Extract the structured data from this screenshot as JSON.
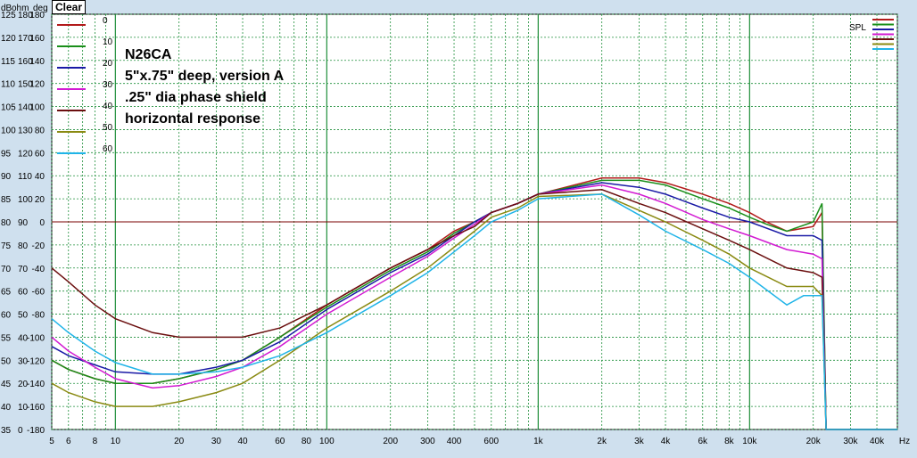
{
  "toolbar": {
    "clear_label": "Clear"
  },
  "header_labels": {
    "db": "dB",
    "ohm": "ohm",
    "deg": "deg"
  },
  "annotation_lines": [
    "N26CA",
    "5\"x.75\" deep, version A",
    ".25\" dia phase shield",
    "horizontal response"
  ],
  "spl_label": "SPL",
  "colors": {
    "s0": "#b21a1a",
    "s10": "#1a8f1a",
    "s20": "#1a1aa6",
    "s30": "#d21ad2",
    "s40": "#6b0f0f",
    "s50": "#8a8a12",
    "s60": "#20b4e8",
    "grid": "#1f8f3a",
    "background": "#ffffff",
    "ref_line": "#7a0000"
  },
  "chart_data": {
    "type": "line",
    "xscale": "log",
    "xlim": [
      5,
      50000
    ],
    "ylim_db": [
      35,
      125
    ],
    "x_tick_labels": [
      "5",
      "6",
      "8",
      "10",
      "20",
      "30",
      "40",
      "60",
      "80",
      "100",
      "200",
      "300",
      "400",
      "600",
      "1k",
      "2k",
      "3k",
      "4k",
      "6k",
      "8k",
      "10k",
      "20k",
      "30k",
      "40k",
      "Hz"
    ],
    "y_tick_rows": [
      {
        "db": "125",
        "ohm": "180",
        "deg": "180"
      },
      {
        "db": "120",
        "ohm": "170",
        "deg": "160"
      },
      {
        "db": "115",
        "ohm": "160",
        "deg": "140"
      },
      {
        "db": "110",
        "ohm": "150",
        "deg": "120"
      },
      {
        "db": "105",
        "ohm": "140",
        "deg": "100"
      },
      {
        "db": "100",
        "ohm": "130",
        "deg": "80"
      },
      {
        "db": "95",
        "ohm": "120",
        "deg": "60"
      },
      {
        "db": "90",
        "ohm": "110",
        "deg": "40"
      },
      {
        "db": "85",
        "ohm": "100",
        "deg": "20"
      },
      {
        "db": "80",
        "ohm": "90",
        "deg": "0"
      },
      {
        "db": "75",
        "ohm": "80",
        "deg": "-20"
      },
      {
        "db": "70",
        "ohm": "70",
        "deg": "-40"
      },
      {
        "db": "65",
        "ohm": "60",
        "deg": "-60"
      },
      {
        "db": "60",
        "ohm": "50",
        "deg": "-80"
      },
      {
        "db": "55",
        "ohm": "40",
        "deg": "-100"
      },
      {
        "db": "50",
        "ohm": "30",
        "deg": "-120"
      },
      {
        "db": "45",
        "ohm": "20",
        "deg": "-140"
      },
      {
        "db": "40",
        "ohm": "10",
        "deg": "-160"
      },
      {
        "db": "35",
        "ohm": "0",
        "deg": "-180"
      }
    ],
    "reference_line_db": 80,
    "series": [
      {
        "name": "0",
        "color": "#b21a1a",
        "points": [
          [
            5,
            50
          ],
          [
            6,
            48
          ],
          [
            8,
            46
          ],
          [
            10,
            45
          ],
          [
            15,
            45
          ],
          [
            20,
            46
          ],
          [
            30,
            48
          ],
          [
            40,
            50
          ],
          [
            60,
            55
          ],
          [
            100,
            62
          ],
          [
            200,
            70
          ],
          [
            300,
            74
          ],
          [
            400,
            78
          ],
          [
            500,
            80
          ],
          [
            600,
            82
          ],
          [
            800,
            84
          ],
          [
            1000,
            86
          ],
          [
            2000,
            89.5
          ],
          [
            3000,
            89.5
          ],
          [
            4000,
            88.5
          ],
          [
            6000,
            86
          ],
          [
            8000,
            84
          ],
          [
            10000,
            82
          ],
          [
            12000,
            80
          ],
          [
            15000,
            78
          ],
          [
            20000,
            79
          ],
          [
            22000,
            82
          ],
          [
            23000,
            35
          ],
          [
            50000,
            35
          ]
        ]
      },
      {
        "name": "10",
        "color": "#1a8f1a",
        "points": [
          [
            5,
            50
          ],
          [
            6,
            48
          ],
          [
            8,
            46
          ],
          [
            10,
            45
          ],
          [
            15,
            45
          ],
          [
            20,
            46
          ],
          [
            30,
            48
          ],
          [
            40,
            50
          ],
          [
            60,
            55
          ],
          [
            100,
            61.5
          ],
          [
            200,
            69.5
          ],
          [
            300,
            73.5
          ],
          [
            400,
            77.5
          ],
          [
            500,
            80
          ],
          [
            600,
            82
          ],
          [
            800,
            84
          ],
          [
            1000,
            86
          ],
          [
            2000,
            89
          ],
          [
            3000,
            89
          ],
          [
            4000,
            88
          ],
          [
            6000,
            85
          ],
          [
            8000,
            83
          ],
          [
            10000,
            81
          ],
          [
            12000,
            79.5
          ],
          [
            15000,
            78
          ],
          [
            20000,
            80
          ],
          [
            22000,
            84
          ],
          [
            23000,
            35
          ],
          [
            50000,
            35
          ]
        ]
      },
      {
        "name": "20",
        "color": "#1a1aa6",
        "points": [
          [
            5,
            53
          ],
          [
            6,
            51
          ],
          [
            8,
            49
          ],
          [
            10,
            47.5
          ],
          [
            15,
            47
          ],
          [
            20,
            47
          ],
          [
            30,
            48.5
          ],
          [
            40,
            50
          ],
          [
            60,
            54
          ],
          [
            100,
            61
          ],
          [
            200,
            69
          ],
          [
            300,
            73
          ],
          [
            400,
            77
          ],
          [
            500,
            80
          ],
          [
            600,
            82
          ],
          [
            800,
            84
          ],
          [
            1000,
            86
          ],
          [
            2000,
            88.5
          ],
          [
            3000,
            87.5
          ],
          [
            4000,
            86
          ],
          [
            6000,
            83
          ],
          [
            8000,
            81
          ],
          [
            10000,
            80
          ],
          [
            15000,
            77
          ],
          [
            20000,
            77
          ],
          [
            22000,
            76
          ],
          [
            23000,
            35
          ],
          [
            50000,
            35
          ]
        ]
      },
      {
        "name": "30",
        "color": "#d21ad2",
        "points": [
          [
            5,
            55
          ],
          [
            6,
            52
          ],
          [
            8,
            48.5
          ],
          [
            10,
            46
          ],
          [
            15,
            44
          ],
          [
            20,
            44.5
          ],
          [
            30,
            46.5
          ],
          [
            40,
            48.5
          ],
          [
            60,
            53
          ],
          [
            100,
            60
          ],
          [
            200,
            68
          ],
          [
            300,
            72.5
          ],
          [
            400,
            76.5
          ],
          [
            500,
            79.5
          ],
          [
            600,
            82
          ],
          [
            800,
            84
          ],
          [
            1000,
            86
          ],
          [
            2000,
            88
          ],
          [
            3000,
            86
          ],
          [
            4000,
            84
          ],
          [
            6000,
            80.5
          ],
          [
            8000,
            78.5
          ],
          [
            10000,
            77
          ],
          [
            15000,
            74
          ],
          [
            20000,
            73
          ],
          [
            22000,
            72
          ],
          [
            23000,
            35
          ],
          [
            50000,
            35
          ]
        ]
      },
      {
        "name": "40",
        "color": "#6b0f0f",
        "points": [
          [
            5,
            70
          ],
          [
            6,
            67
          ],
          [
            8,
            62
          ],
          [
            10,
            59
          ],
          [
            15,
            56
          ],
          [
            20,
            55
          ],
          [
            30,
            55
          ],
          [
            40,
            55
          ],
          [
            60,
            57
          ],
          [
            100,
            62
          ],
          [
            200,
            70
          ],
          [
            300,
            74
          ],
          [
            400,
            77
          ],
          [
            500,
            79
          ],
          [
            600,
            82
          ],
          [
            800,
            84
          ],
          [
            1000,
            86
          ],
          [
            2000,
            87
          ],
          [
            3000,
            84
          ],
          [
            4000,
            82
          ],
          [
            6000,
            78.5
          ],
          [
            8000,
            76
          ],
          [
            10000,
            74
          ],
          [
            15000,
            70
          ],
          [
            20000,
            69
          ],
          [
            22000,
            68
          ],
          [
            23000,
            35
          ],
          [
            50000,
            35
          ]
        ]
      },
      {
        "name": "50",
        "color": "#8a8a12",
        "points": [
          [
            5,
            45
          ],
          [
            6,
            43
          ],
          [
            8,
            41
          ],
          [
            10,
            40
          ],
          [
            15,
            40
          ],
          [
            20,
            41
          ],
          [
            30,
            43
          ],
          [
            40,
            45
          ],
          [
            60,
            50
          ],
          [
            100,
            57
          ],
          [
            200,
            65
          ],
          [
            300,
            70
          ],
          [
            400,
            74.5
          ],
          [
            500,
            78
          ],
          [
            600,
            81
          ],
          [
            800,
            83
          ],
          [
            1000,
            85.5
          ],
          [
            2000,
            86
          ],
          [
            3000,
            82.5
          ],
          [
            4000,
            80
          ],
          [
            6000,
            76
          ],
          [
            8000,
            73
          ],
          [
            10000,
            70
          ],
          [
            15000,
            66
          ],
          [
            20000,
            66
          ],
          [
            22000,
            64
          ],
          [
            23000,
            35
          ],
          [
            50000,
            35
          ]
        ]
      },
      {
        "name": "60",
        "color": "#20b4e8",
        "points": [
          [
            5,
            59
          ],
          [
            6,
            56
          ],
          [
            8,
            52
          ],
          [
            10,
            49.5
          ],
          [
            15,
            47
          ],
          [
            20,
            47
          ],
          [
            30,
            47.5
          ],
          [
            40,
            48.5
          ],
          [
            60,
            51
          ],
          [
            100,
            56
          ],
          [
            200,
            64
          ],
          [
            300,
            69
          ],
          [
            400,
            73.5
          ],
          [
            500,
            77
          ],
          [
            600,
            80
          ],
          [
            800,
            82.5
          ],
          [
            1000,
            85
          ],
          [
            2000,
            86
          ],
          [
            3000,
            81.5
          ],
          [
            4000,
            78
          ],
          [
            6000,
            74
          ],
          [
            8000,
            71
          ],
          [
            10000,
            68
          ],
          [
            15000,
            62
          ],
          [
            18000,
            64
          ],
          [
            20000,
            64
          ],
          [
            22000,
            64
          ],
          [
            23000,
            35
          ],
          [
            50000,
            35
          ]
        ]
      }
    ]
  }
}
